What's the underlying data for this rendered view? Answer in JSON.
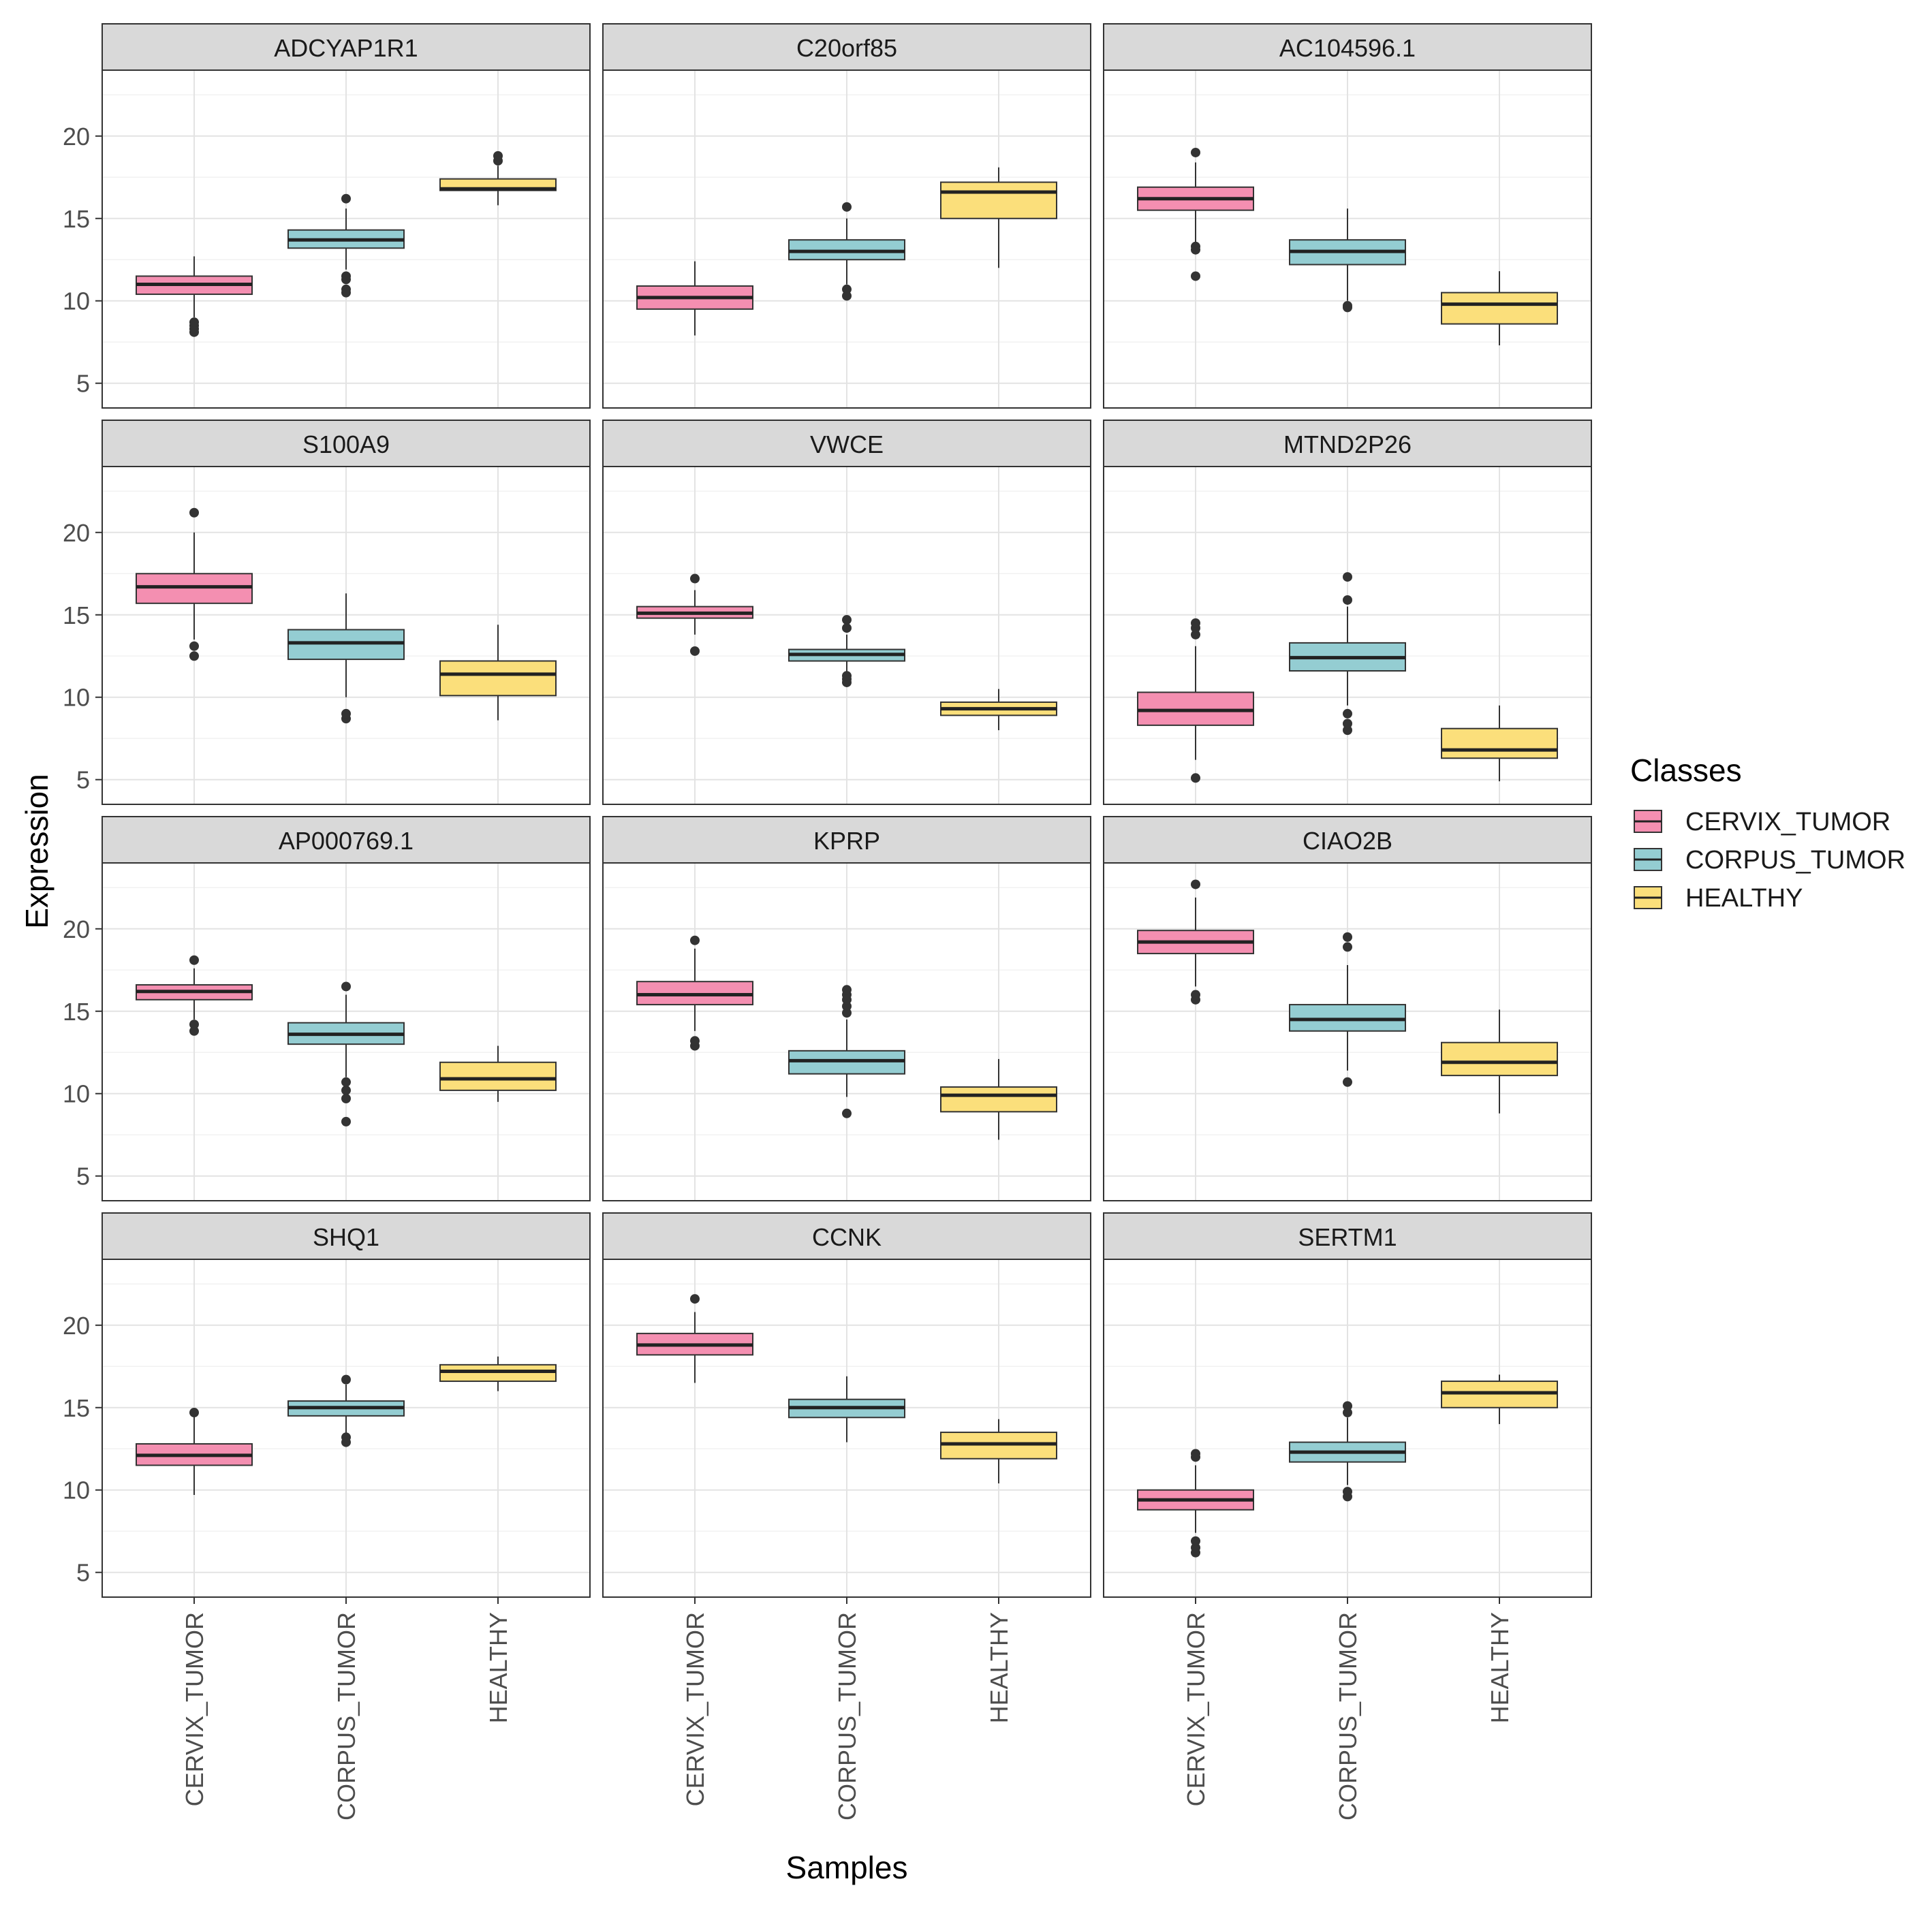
{
  "chart_data": {
    "type": "boxplot",
    "facet_layout": "4 rows x 3 columns",
    "xlabel": "Samples",
    "ylabel": "Expression",
    "ylim": [
      3.5,
      24
    ],
    "yticks": [
      5,
      10,
      15,
      20
    ],
    "grid": true,
    "categories": [
      "CERVIX_TUMOR",
      "CORPUS_TUMOR",
      "HEALTHY"
    ],
    "legend": {
      "title": "Classes",
      "position": "right",
      "entries": [
        {
          "label": "CERVIX_TUMOR",
          "color": "#F48FB1"
        },
        {
          "label": "CORPUS_TUMOR",
          "color": "#94CDD2"
        },
        {
          "label": "HEALTHY",
          "color": "#FBDF7B"
        }
      ]
    },
    "panels": [
      {
        "title": "ADCYAP1R1",
        "boxes": [
          {
            "whisker_low": 9.0,
            "q1": 10.4,
            "median": 11.0,
            "q3": 11.5,
            "whisker_high": 12.7,
            "outliers": [
              8.1,
              8.3,
              8.5,
              8.7
            ]
          },
          {
            "whisker_low": 11.9,
            "q1": 13.2,
            "median": 13.7,
            "q3": 14.3,
            "whisker_high": 15.6,
            "outliers": [
              10.5,
              10.7,
              11.3,
              11.5,
              16.2
            ]
          },
          {
            "whisker_low": 15.8,
            "q1": 16.7,
            "median": 16.8,
            "q3": 17.4,
            "whisker_high": 18.2,
            "outliers": [
              18.5,
              18.8
            ]
          }
        ]
      },
      {
        "title": "C20orf85",
        "boxes": [
          {
            "whisker_low": 7.9,
            "q1": 9.5,
            "median": 10.2,
            "q3": 10.9,
            "whisker_high": 12.4,
            "outliers": []
          },
          {
            "whisker_low": 11.0,
            "q1": 12.5,
            "median": 13.0,
            "q3": 13.7,
            "whisker_high": 15.0,
            "outliers": [
              10.3,
              10.7,
              15.7
            ]
          },
          {
            "whisker_low": 12.0,
            "q1": 15.0,
            "median": 16.6,
            "q3": 17.2,
            "whisker_high": 18.1,
            "outliers": []
          }
        ]
      },
      {
        "title": "AC104596.1",
        "boxes": [
          {
            "whisker_low": 13.5,
            "q1": 15.5,
            "median": 16.2,
            "q3": 16.9,
            "whisker_high": 18.4,
            "outliers": [
              11.5,
              13.1,
              13.3,
              19.0
            ]
          },
          {
            "whisker_low": 10.0,
            "q1": 12.2,
            "median": 13.0,
            "q3": 13.7,
            "whisker_high": 15.6,
            "outliers": [
              9.6,
              9.7
            ]
          },
          {
            "whisker_low": 7.3,
            "q1": 8.6,
            "median": 9.8,
            "q3": 10.5,
            "whisker_high": 11.8,
            "outliers": []
          }
        ]
      },
      {
        "title": "S100A9",
        "boxes": [
          {
            "whisker_low": 13.5,
            "q1": 15.7,
            "median": 16.7,
            "q3": 17.5,
            "whisker_high": 20.0,
            "outliers": [
              12.5,
              13.1,
              21.2
            ]
          },
          {
            "whisker_low": 10.0,
            "q1": 12.3,
            "median": 13.3,
            "q3": 14.1,
            "whisker_high": 16.3,
            "outliers": [
              8.7,
              9.0
            ]
          },
          {
            "whisker_low": 8.6,
            "q1": 10.1,
            "median": 11.4,
            "q3": 12.2,
            "whisker_high": 14.4,
            "outliers": []
          }
        ]
      },
      {
        "title": "VWCE",
        "boxes": [
          {
            "whisker_low": 13.8,
            "q1": 14.8,
            "median": 15.1,
            "q3": 15.5,
            "whisker_high": 16.5,
            "outliers": [
              12.8,
              17.2
            ]
          },
          {
            "whisker_low": 11.5,
            "q1": 12.2,
            "median": 12.6,
            "q3": 12.9,
            "whisker_high": 13.8,
            "outliers": [
              10.9,
              11.1,
              11.3,
              14.2,
              14.7
            ]
          },
          {
            "whisker_low": 8.0,
            "q1": 8.9,
            "median": 9.3,
            "q3": 9.7,
            "whisker_high": 10.5,
            "outliers": []
          }
        ]
      },
      {
        "title": "MTND2P26",
        "boxes": [
          {
            "whisker_low": 6.2,
            "q1": 8.3,
            "median": 9.2,
            "q3": 10.3,
            "whisker_high": 13.1,
            "outliers": [
              5.1,
              13.8,
              14.2,
              14.5
            ]
          },
          {
            "whisker_low": 9.5,
            "q1": 11.6,
            "median": 12.4,
            "q3": 13.3,
            "whisker_high": 15.5,
            "outliers": [
              8.0,
              8.4,
              9.0,
              15.9,
              17.3
            ]
          },
          {
            "whisker_low": 4.9,
            "q1": 6.3,
            "median": 6.8,
            "q3": 8.1,
            "whisker_high": 9.5,
            "outliers": []
          }
        ]
      },
      {
        "title": "AP000769.1",
        "boxes": [
          {
            "whisker_low": 14.5,
            "q1": 15.7,
            "median": 16.2,
            "q3": 16.6,
            "whisker_high": 17.6,
            "outliers": [
              13.8,
              14.2,
              18.1
            ]
          },
          {
            "whisker_low": 11.0,
            "q1": 13.0,
            "median": 13.6,
            "q3": 14.3,
            "whisker_high": 16.0,
            "outliers": [
              8.3,
              9.7,
              10.2,
              10.7,
              16.5
            ]
          },
          {
            "whisker_low": 9.5,
            "q1": 10.2,
            "median": 10.9,
            "q3": 11.9,
            "whisker_high": 12.9,
            "outliers": []
          }
        ]
      },
      {
        "title": "KPRP",
        "boxes": [
          {
            "whisker_low": 13.8,
            "q1": 15.4,
            "median": 16.0,
            "q3": 16.8,
            "whisker_high": 18.8,
            "outliers": [
              12.9,
              13.2,
              19.3
            ]
          },
          {
            "whisker_low": 9.8,
            "q1": 11.2,
            "median": 12.0,
            "q3": 12.6,
            "whisker_high": 14.5,
            "outliers": [
              8.8,
              14.9,
              15.3,
              15.7,
              16.0,
              16.3
            ]
          },
          {
            "whisker_low": 7.2,
            "q1": 8.9,
            "median": 9.9,
            "q3": 10.4,
            "whisker_high": 12.1,
            "outliers": []
          }
        ]
      },
      {
        "title": "CIAO2B",
        "boxes": [
          {
            "whisker_low": 16.5,
            "q1": 18.5,
            "median": 19.2,
            "q3": 19.9,
            "whisker_high": 21.9,
            "outliers": [
              15.7,
              16.0,
              22.7
            ]
          },
          {
            "whisker_low": 11.4,
            "q1": 13.8,
            "median": 14.5,
            "q3": 15.4,
            "whisker_high": 17.8,
            "outliers": [
              10.7,
              18.9,
              19.5
            ]
          },
          {
            "whisker_low": 8.8,
            "q1": 11.1,
            "median": 11.9,
            "q3": 13.1,
            "whisker_high": 15.1,
            "outliers": []
          }
        ]
      },
      {
        "title": "SHQ1",
        "boxes": [
          {
            "whisker_low": 9.7,
            "q1": 11.5,
            "median": 12.1,
            "q3": 12.8,
            "whisker_high": 14.5,
            "outliers": [
              14.7
            ]
          },
          {
            "whisker_low": 13.4,
            "q1": 14.5,
            "median": 15.0,
            "q3": 15.4,
            "whisker_high": 16.4,
            "outliers": [
              12.9,
              13.2,
              16.7
            ]
          },
          {
            "whisker_low": 16.0,
            "q1": 16.6,
            "median": 17.2,
            "q3": 17.6,
            "whisker_high": 18.1,
            "outliers": []
          }
        ]
      },
      {
        "title": "CCNK",
        "boxes": [
          {
            "whisker_low": 16.5,
            "q1": 18.2,
            "median": 18.8,
            "q3": 19.5,
            "whisker_high": 20.8,
            "outliers": [
              21.6
            ]
          },
          {
            "whisker_low": 12.9,
            "q1": 14.4,
            "median": 15.0,
            "q3": 15.5,
            "whisker_high": 16.9,
            "outliers": []
          },
          {
            "whisker_low": 10.4,
            "q1": 11.9,
            "median": 12.8,
            "q3": 13.5,
            "whisker_high": 14.3,
            "outliers": []
          }
        ]
      },
      {
        "title": "SERTM1",
        "boxes": [
          {
            "whisker_low": 7.4,
            "q1": 8.8,
            "median": 9.4,
            "q3": 10.0,
            "whisker_high": 11.5,
            "outliers": [
              6.2,
              6.5,
              6.9,
              12.0,
              12.2
            ]
          },
          {
            "whisker_low": 10.3,
            "q1": 11.7,
            "median": 12.3,
            "q3": 12.9,
            "whisker_high": 14.4,
            "outliers": [
              9.6,
              9.9,
              14.7,
              15.1
            ]
          },
          {
            "whisker_low": 14.0,
            "q1": 15.0,
            "median": 15.9,
            "q3": 16.6,
            "whisker_high": 17.0,
            "outliers": []
          }
        ]
      }
    ]
  }
}
